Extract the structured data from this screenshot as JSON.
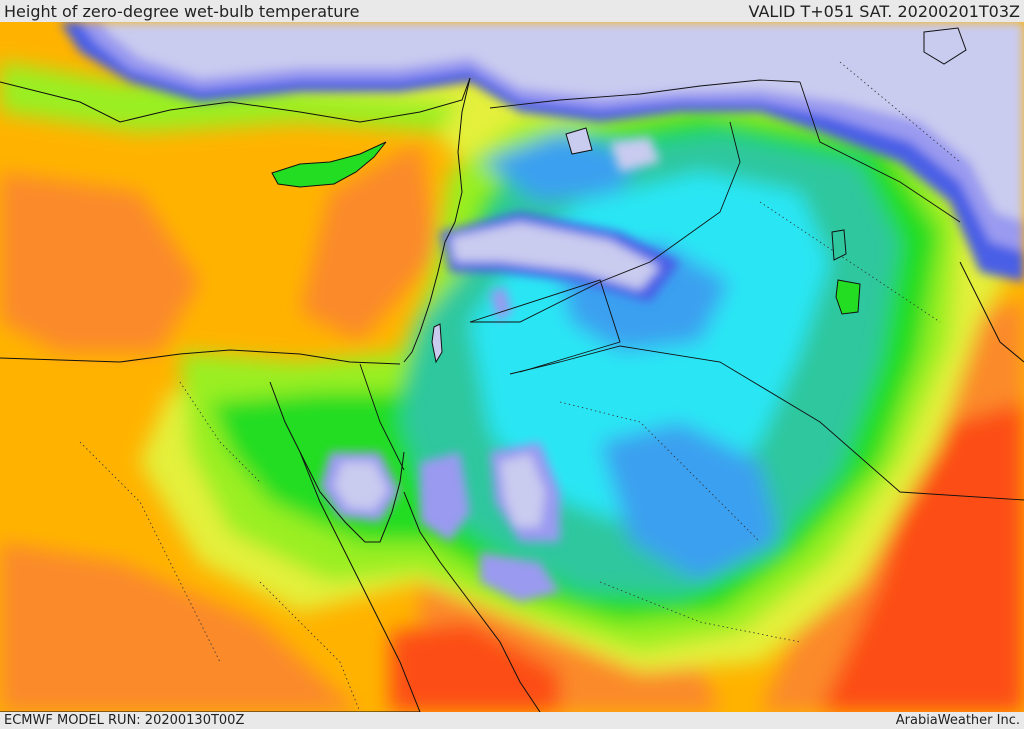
{
  "header": {
    "title": "Height of zero-degree wet-bulb temperature",
    "valid": "VALID T+051 SAT. 20200201T03Z"
  },
  "footer": {
    "model_run": "ECMWF MODEL RUN: 20200130T00Z",
    "credit": "ArabiaWeather Inc."
  },
  "colors": {
    "sea_low": "#c9cbef",
    "violet": "#9a9af0",
    "blue": "#4a5fe6",
    "azure": "#3aa0f0",
    "cyan": "#2ae6f4",
    "teal": "#2ec79e",
    "green": "#22dd22",
    "lime": "#9aef22",
    "yellow": "#e4f03a",
    "amber": "#ffb300",
    "orange": "#fb8a2a",
    "red": "#fc4e16"
  }
}
